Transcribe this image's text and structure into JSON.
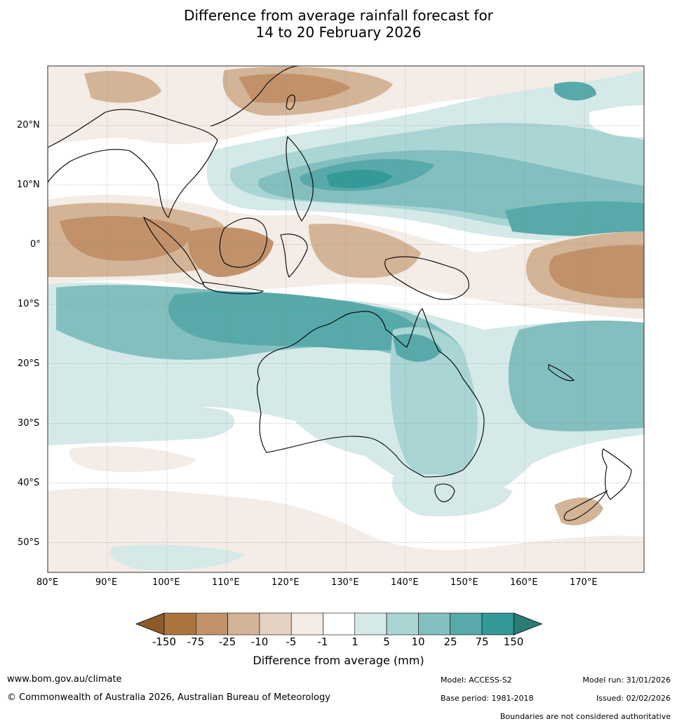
{
  "title": {
    "line1": "Difference from average rainfall forecast for",
    "line2": "14 to 20 February 2026"
  },
  "map": {
    "latitude_labels": [
      "20°N",
      "10°N",
      "0°",
      "10°S",
      "20°S",
      "30°S",
      "40°S",
      "50°S"
    ],
    "longitude_labels": [
      "80°E",
      "90°E",
      "100°E",
      "110°E",
      "120°E",
      "130°E",
      "140°E",
      "150°E",
      "160°E",
      "170°E"
    ],
    "extent": {
      "lon_min": 80,
      "lon_max": 180,
      "lat_min": -55,
      "lat_max": 30
    }
  },
  "colorbar": {
    "tick_labels": [
      "-150",
      "-75",
      "-25",
      "-10",
      "-5",
      "-1",
      "1",
      "5",
      "10",
      "25",
      "75",
      "150"
    ],
    "colors": [
      "#8d5a2b",
      "#ac743f",
      "#c1926a",
      "#d4b496",
      "#e6d2c2",
      "#f4ece6",
      "#ffffff",
      "#d4e9e8",
      "#a9d5d4",
      "#82bfbe",
      "#57aaa9",
      "#339a97",
      "#2a7c79"
    ],
    "label": "Difference from average (mm)"
  },
  "footer": {
    "website": "www.bom.gov.au/climate",
    "copyright": "© Commonwealth of Australia 2026, Australian Bureau of Meteorology",
    "model": "Model: ACCESS-S2",
    "base_period": "Base period: 1981-2018",
    "model_run": "Model run: 31/01/2026",
    "issued": "Issued: 02/02/2026",
    "disclaimer": "Boundaries are not considered authoritative"
  }
}
